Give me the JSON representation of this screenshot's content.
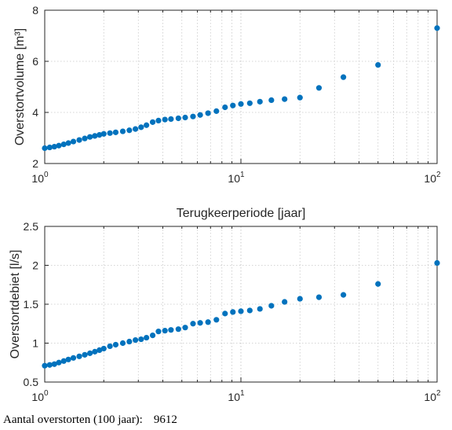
{
  "chart_data": [
    {
      "type": "scatter",
      "title": "",
      "xlabel": "Terugkeerperiode [jaar]",
      "ylabel": "Overstortvolume [m³]",
      "xscale": "log",
      "xlim": [
        1,
        100
      ],
      "ylim": [
        2,
        8
      ],
      "x_ticks": [
        {
          "value": 1,
          "base": "10",
          "exp": "0"
        },
        {
          "value": 10,
          "base": "10",
          "exp": "1"
        },
        {
          "value": 100,
          "base": "10",
          "exp": "2"
        }
      ],
      "y_ticks": [
        2,
        4,
        6,
        8
      ],
      "grid": true,
      "marker_color": "#0072BD",
      "points": [
        [
          1.0,
          2.6
        ],
        [
          1.06,
          2.63
        ],
        [
          1.12,
          2.66
        ],
        [
          1.18,
          2.7
        ],
        [
          1.25,
          2.75
        ],
        [
          1.32,
          2.8
        ],
        [
          1.4,
          2.86
        ],
        [
          1.5,
          2.92
        ],
        [
          1.6,
          2.98
        ],
        [
          1.7,
          3.04
        ],
        [
          1.8,
          3.08
        ],
        [
          1.9,
          3.12
        ],
        [
          2.0,
          3.16
        ],
        [
          2.15,
          3.19
        ],
        [
          2.3,
          3.22
        ],
        [
          2.5,
          3.26
        ],
        [
          2.7,
          3.3
        ],
        [
          2.9,
          3.35
        ],
        [
          3.1,
          3.42
        ],
        [
          3.3,
          3.5
        ],
        [
          3.55,
          3.62
        ],
        [
          3.8,
          3.68
        ],
        [
          4.1,
          3.72
        ],
        [
          4.4,
          3.74
        ],
        [
          4.8,
          3.77
        ],
        [
          5.2,
          3.8
        ],
        [
          5.7,
          3.84
        ],
        [
          6.2,
          3.9
        ],
        [
          6.8,
          3.97
        ],
        [
          7.5,
          4.05
        ],
        [
          8.3,
          4.2
        ],
        [
          9.1,
          4.27
        ],
        [
          10.0,
          4.33
        ],
        [
          11.1,
          4.36
        ],
        [
          12.5,
          4.42
        ],
        [
          14.3,
          4.48
        ],
        [
          16.7,
          4.52
        ],
        [
          20.0,
          4.58
        ],
        [
          25.0,
          4.96
        ],
        [
          33.3,
          5.38
        ],
        [
          50.0,
          5.86
        ],
        [
          100.0,
          7.3
        ]
      ]
    },
    {
      "type": "scatter",
      "title": "",
      "xlabel": "",
      "ylabel": "Overstortdebiet [l/s]",
      "xscale": "log",
      "xlim": [
        1,
        100
      ],
      "ylim": [
        0.5,
        2.5
      ],
      "x_ticks": [
        {
          "value": 1,
          "base": "10",
          "exp": "0"
        },
        {
          "value": 10,
          "base": "10",
          "exp": "1"
        },
        {
          "value": 100,
          "base": "10",
          "exp": "2"
        }
      ],
      "y_ticks": [
        "0.5",
        "1",
        "1.5",
        "2",
        "2.5"
      ],
      "grid": true,
      "marker_color": "#0072BD",
      "points": [
        [
          1.0,
          0.71
        ],
        [
          1.06,
          0.72
        ],
        [
          1.12,
          0.73
        ],
        [
          1.18,
          0.75
        ],
        [
          1.25,
          0.77
        ],
        [
          1.32,
          0.79
        ],
        [
          1.4,
          0.81
        ],
        [
          1.5,
          0.83
        ],
        [
          1.6,
          0.85
        ],
        [
          1.7,
          0.87
        ],
        [
          1.8,
          0.89
        ],
        [
          1.9,
          0.91
        ],
        [
          2.0,
          0.93
        ],
        [
          2.15,
          0.96
        ],
        [
          2.3,
          0.98
        ],
        [
          2.5,
          1.0
        ],
        [
          2.7,
          1.02
        ],
        [
          2.9,
          1.04
        ],
        [
          3.1,
          1.05
        ],
        [
          3.3,
          1.07
        ],
        [
          3.55,
          1.1
        ],
        [
          3.8,
          1.15
        ],
        [
          4.1,
          1.16
        ],
        [
          4.4,
          1.17
        ],
        [
          4.8,
          1.18
        ],
        [
          5.2,
          1.2
        ],
        [
          5.7,
          1.25
        ],
        [
          6.2,
          1.26
        ],
        [
          6.8,
          1.27
        ],
        [
          7.5,
          1.3
        ],
        [
          8.3,
          1.38
        ],
        [
          9.1,
          1.4
        ],
        [
          10.0,
          1.41
        ],
        [
          11.1,
          1.42
        ],
        [
          12.5,
          1.44
        ],
        [
          14.3,
          1.48
        ],
        [
          16.7,
          1.53
        ],
        [
          20.0,
          1.57
        ],
        [
          25.0,
          1.59
        ],
        [
          33.3,
          1.62
        ],
        [
          50.0,
          1.76
        ],
        [
          100.0,
          2.03
        ]
      ]
    }
  ],
  "footer": {
    "label": "Aantal overstorten (100 jaar):",
    "value": "9612"
  }
}
